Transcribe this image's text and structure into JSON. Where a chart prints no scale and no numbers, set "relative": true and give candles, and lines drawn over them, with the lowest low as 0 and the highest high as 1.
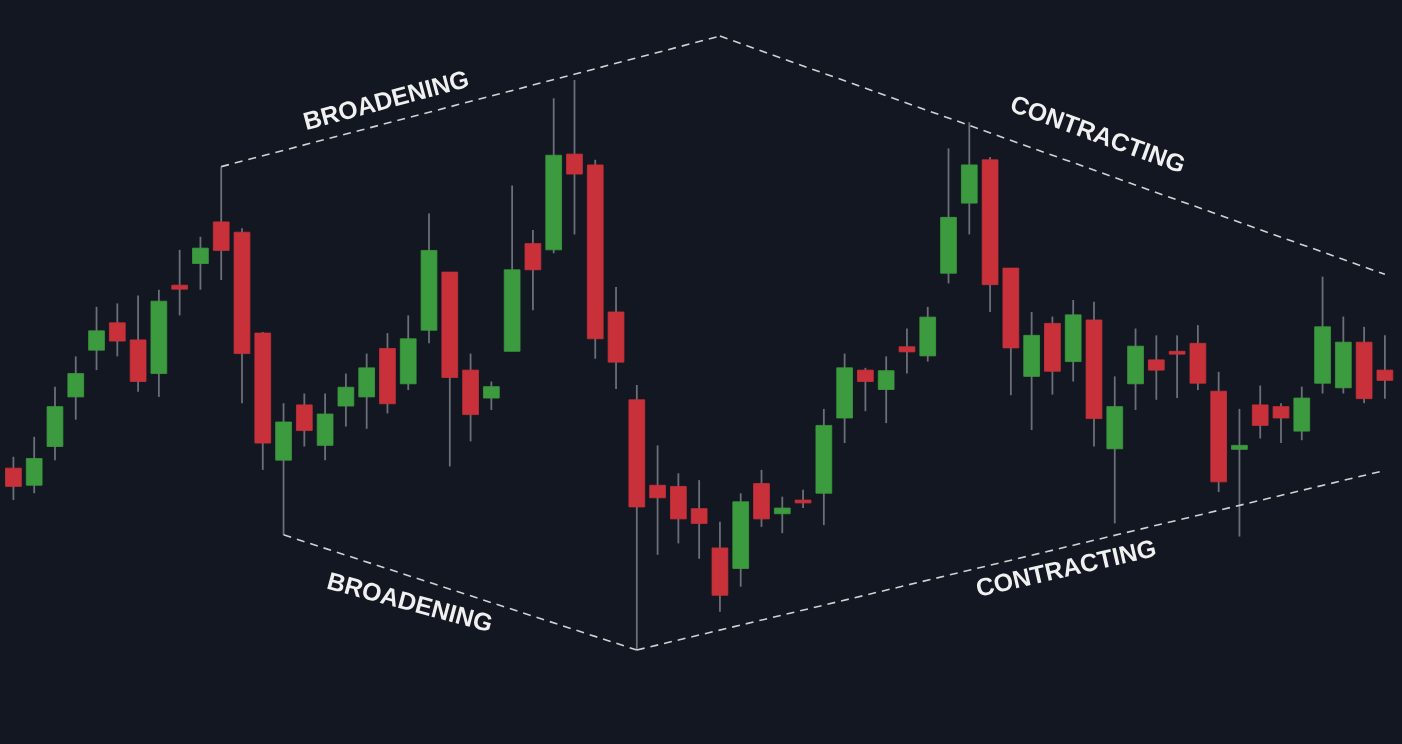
{
  "chart_data": {
    "type": "candlestick",
    "relative": true,
    "categories": [
      null,
      null,
      null,
      null,
      null,
      null,
      null,
      null,
      null,
      null,
      null,
      null,
      null,
      null,
      null,
      null,
      null,
      null,
      null,
      null,
      null,
      null,
      null,
      null,
      null,
      null,
      null,
      null,
      null,
      null,
      null,
      null,
      null,
      null,
      null,
      null,
      null,
      null,
      null,
      null,
      null,
      null,
      null,
      null,
      null,
      null,
      null,
      null,
      null,
      null,
      null,
      null,
      null,
      null,
      null,
      null,
      null,
      null,
      null,
      null,
      null,
      null,
      null,
      null,
      null,
      null,
      null
    ],
    "ohlc": [
      [
        0.319,
        0.339,
        0.263,
        0.287
      ],
      [
        0.289,
        0.374,
        0.275,
        0.336
      ],
      [
        0.357,
        0.462,
        0.333,
        0.427
      ],
      [
        0.444,
        0.515,
        0.404,
        0.485
      ],
      [
        0.526,
        0.602,
        0.491,
        0.56
      ],
      [
        0.574,
        0.608,
        0.515,
        0.542
      ],
      [
        0.544,
        0.622,
        0.453,
        0.471
      ],
      [
        0.485,
        0.632,
        0.444,
        0.612
      ],
      [
        0.64,
        0.702,
        0.587,
        0.633
      ],
      [
        0.678,
        0.725,
        0.632,
        0.705
      ],
      [
        0.751,
        0.848,
        0.649,
        0.701
      ],
      [
        0.733,
        0.74,
        0.433,
        0.52
      ],
      [
        0.556,
        0.558,
        0.316,
        0.363
      ],
      [
        0.333,
        0.433,
        0.202,
        0.4
      ],
      [
        0.43,
        0.45,
        0.357,
        0.385
      ],
      [
        0.359,
        0.45,
        0.333,
        0.414
      ],
      [
        0.428,
        0.485,
        0.392,
        0.461
      ],
      [
        0.444,
        0.52,
        0.388,
        0.495
      ],
      [
        0.529,
        0.556,
        0.415,
        0.432
      ],
      [
        0.467,
        0.587,
        0.456,
        0.546
      ],
      [
        0.561,
        0.766,
        0.538,
        0.701
      ],
      [
        0.663,
        0.663,
        0.322,
        0.478
      ],
      [
        0.491,
        0.52,
        0.366,
        0.413
      ],
      [
        0.442,
        0.471,
        0.421,
        0.462
      ],
      [
        0.524,
        0.815,
        0.524,
        0.667
      ],
      [
        0.713,
        0.737,
        0.596,
        0.667
      ],
      [
        0.702,
        0.968,
        0.696,
        0.868
      ],
      [
        0.87,
        1,
        0.729,
        0.835
      ],
      [
        0.851,
        0.86,
        0.511,
        0.546
      ],
      [
        0.593,
        0.637,
        0.458,
        0.505
      ],
      [
        0.439,
        0.465,
        0,
        0.251
      ],
      [
        0.289,
        0.359,
        0.167,
        0.267
      ],
      [
        0.287,
        0.31,
        0.187,
        0.23
      ],
      [
        0.248,
        0.298,
        0.16,
        0.222
      ],
      [
        0.179,
        0.225,
        0.067,
        0.096
      ],
      [
        0.143,
        0.275,
        0.111,
        0.26
      ],
      [
        0.292,
        0.316,
        0.216,
        0.23
      ],
      [
        0.239,
        0.269,
        0.205,
        0.249
      ],
      [
        0.263,
        0.281,
        0.249,
        0.258
      ],
      [
        0.275,
        0.423,
        0.219,
        0.394
      ],
      [
        0.407,
        0.52,
        0.363,
        0.495
      ],
      [
        0.491,
        0.495,
        0.419,
        0.471
      ],
      [
        0.457,
        0.515,
        0.398,
        0.49
      ],
      [
        0.532,
        0.564,
        0.485,
        0.523
      ],
      [
        0.516,
        0.602,
        0.506,
        0.584
      ],
      [
        0.661,
        0.88,
        0.643,
        0.759
      ],
      [
        0.784,
        0.926,
        0.729,
        0.851
      ],
      [
        0.86,
        0.865,
        0.593,
        0.641
      ],
      [
        0.67,
        0.67,
        0.447,
        0.53
      ],
      [
        0.48,
        0.593,
        0.386,
        0.552
      ],
      [
        0.573,
        0.585,
        0.448,
        0.489
      ],
      [
        0.506,
        0.614,
        0.471,
        0.588
      ],
      [
        0.579,
        0.611,
        0.357,
        0.406
      ],
      [
        0.353,
        0.48,
        0.222,
        0.427
      ],
      [
        0.467,
        0.564,
        0.421,
        0.533
      ],
      [
        0.509,
        0.552,
        0.439,
        0.491
      ],
      [
        0.524,
        0.552,
        0.442,
        0.519
      ],
      [
        0.538,
        0.57,
        0.456,
        0.468
      ],
      [
        0.454,
        0.488,
        0.277,
        0.295
      ],
      [
        0.352,
        0.423,
        0.199,
        0.359
      ],
      [
        0.43,
        0.464,
        0.371,
        0.394
      ],
      [
        0.427,
        0.433,
        0.363,
        0.407
      ],
      [
        0.384,
        0.462,
        0.368,
        0.442
      ],
      [
        0.468,
        0.655,
        0.45,
        0.567
      ],
      [
        0.46,
        0.585,
        0.45,
        0.54
      ],
      [
        0.54,
        0.567,
        0.433,
        0.441
      ],
      [
        0.491,
        0.552,
        0.441,
        0.473
      ]
    ],
    "colors": [
      "#c9313a",
      "#3c9a3f",
      "#3c9a3f",
      "#3c9a3f",
      "#3c9a3f",
      "#c9313a",
      "#c9313a",
      "#3c9a3f",
      "#c9313a",
      "#3c9a3f",
      "#c9313a",
      "#c9313a",
      "#c9313a",
      "#3c9a3f",
      "#c9313a",
      "#3c9a3f",
      "#3c9a3f",
      "#3c9a3f",
      "#c9313a",
      "#3c9a3f",
      "#3c9a3f",
      "#c9313a",
      "#c9313a",
      "#3c9a3f",
      "#3c9a3f",
      "#c9313a",
      "#3c9a3f",
      "#c9313a",
      "#c9313a",
      "#c9313a",
      "#c9313a",
      "#c9313a",
      "#c9313a",
      "#c9313a",
      "#c9313a",
      "#3c9a3f",
      "#c9313a",
      "#3c9a3f",
      "#c9313a",
      "#3c9a3f",
      "#3c9a3f",
      "#c9313a",
      "#3c9a3f",
      "#c9313a",
      "#3c9a3f",
      "#3c9a3f",
      "#3c9a3f",
      "#c9313a",
      "#c9313a",
      "#3c9a3f",
      "#c9313a",
      "#3c9a3f",
      "#c9313a",
      "#3c9a3f",
      "#3c9a3f",
      "#c9313a",
      "#c9313a",
      "#c9313a",
      "#c9313a",
      "#3c9a3f",
      "#c9313a",
      "#c9313a",
      "#3c9a3f",
      "#3c9a3f",
      "#3c9a3f",
      "#c9313a",
      "#c9313a"
    ],
    "series": [
      {
        "type": "line",
        "color": "#d2d2d2",
        "line_style": "dashed",
        "values": [
          null,
          null,
          null,
          null,
          null,
          null,
          null,
          null,
          null,
          null,
          0.848,
          null,
          null,
          null,
          null,
          null,
          null,
          null,
          null,
          null,
          null,
          null,
          null,
          null,
          null,
          null,
          null,
          null,
          null,
          null,
          null,
          null,
          null,
          null,
          1.077,
          null,
          null,
          null,
          null,
          null,
          null,
          null,
          null,
          null,
          null,
          null,
          null,
          null,
          null,
          null,
          null,
          null,
          null,
          null,
          null,
          null,
          null,
          null,
          null,
          null,
          null,
          null,
          null,
          null,
          null,
          null,
          null
        ]
      },
      {
        "type": "line",
        "color": "#d2d2d2",
        "line_style": "dashed",
        "values": [
          null,
          null,
          null,
          null,
          null,
          null,
          null,
          null,
          null,
          null,
          null,
          null,
          null,
          0.202,
          null,
          null,
          null,
          null,
          null,
          null,
          null,
          null,
          null,
          null,
          null,
          null,
          null,
          null,
          null,
          null,
          0,
          null,
          null,
          null,
          null,
          null,
          null,
          null,
          null,
          null,
          null,
          null,
          null,
          null,
          null,
          null,
          null,
          null,
          null,
          null,
          null,
          null,
          null,
          null,
          null,
          null,
          null,
          null,
          null,
          null,
          null,
          null,
          null,
          null,
          null,
          null,
          null
        ]
      },
      {
        "type": "line",
        "color": "#d2d2d2",
        "line_style": "dashed",
        "values": [
          null,
          null,
          null,
          null,
          null,
          null,
          null,
          null,
          null,
          null,
          null,
          null,
          null,
          null,
          null,
          null,
          null,
          null,
          null,
          null,
          null,
          null,
          null,
          null,
          null,
          null,
          null,
          null,
          null,
          null,
          null,
          null,
          null,
          null,
          1.077,
          null,
          null,
          null,
          null,
          null,
          null,
          null,
          null,
          null,
          null,
          null,
          null,
          null,
          null,
          null,
          null,
          null,
          null,
          null,
          null,
          null,
          null,
          null,
          null,
          null,
          null,
          null,
          null,
          null,
          null,
          null,
          0.659
        ]
      },
      {
        "type": "line",
        "color": "#d2d2d2",
        "line_style": "dashed",
        "values": [
          null,
          null,
          null,
          null,
          null,
          null,
          null,
          null,
          null,
          null,
          null,
          null,
          null,
          null,
          null,
          null,
          null,
          null,
          null,
          null,
          null,
          null,
          null,
          null,
          null,
          null,
          null,
          null,
          null,
          null,
          0,
          null,
          null,
          null,
          null,
          null,
          null,
          null,
          null,
          null,
          null,
          null,
          null,
          null,
          null,
          null,
          null,
          null,
          null,
          null,
          null,
          null,
          null,
          null,
          null,
          null,
          null,
          null,
          null,
          null,
          null,
          null,
          null,
          null,
          null,
          null,
          0.315
        ]
      }
    ],
    "annotations": [
      "BROADENING",
      "BROADENING",
      "CONTRACTING",
      "CONTRACTING"
    ]
  }
}
